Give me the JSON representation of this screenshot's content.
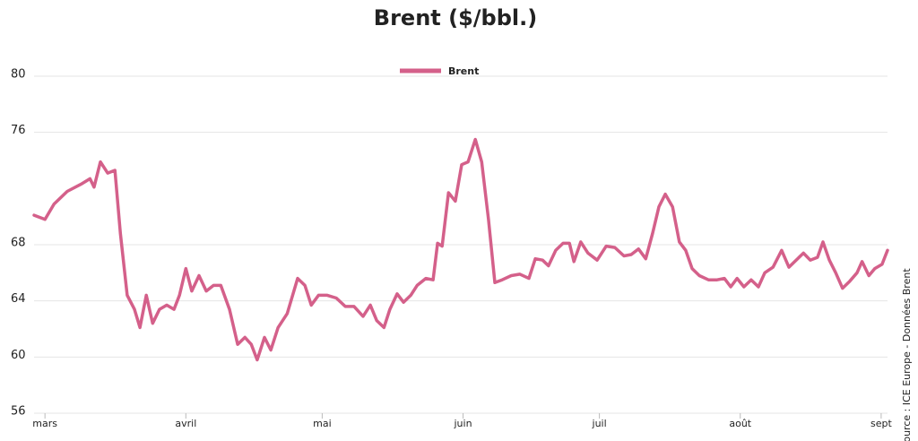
{
  "chart_data": {
    "type": "line",
    "title": "Brent ($/bbl.)",
    "source": "Source : ICE Europe - Données Brent",
    "legend": "top",
    "grid": true,
    "ylim": [
      56,
      80
    ],
    "yticks": [
      56,
      60,
      64,
      68,
      76,
      80
    ],
    "xlim": [
      -2.4,
      185.4
    ],
    "xticks": [
      {
        "value": 0,
        "label": "mars"
      },
      {
        "value": 31,
        "label": "avril"
      },
      {
        "value": 61,
        "label": "mai"
      },
      {
        "value": 92,
        "label": "juin"
      },
      {
        "value": 122,
        "label": "juil"
      },
      {
        "value": 153,
        "label": "août"
      },
      {
        "value": 184,
        "label": "sept"
      }
    ],
    "x": [
      -2.4,
      0,
      2.0,
      4.9,
      7.9,
      9.9,
      10.8,
      12.2,
      13.8,
      15.4,
      16.6,
      18.1,
      19.7,
      20.9,
      22.3,
      23.7,
      25.2,
      26.8,
      28.4,
      29.6,
      31.0,
      32.3,
      33.9,
      35.5,
      37.1,
      38.7,
      40.6,
      42.4,
      44.0,
      45.4,
      46.7,
      48.3,
      49.7,
      51.3,
      53.3,
      55.6,
      57.2,
      58.6,
      60.2,
      62.1,
      64.1,
      66.1,
      68.0,
      70.0,
      71.6,
      73.0,
      74.6,
      75.9,
      77.5,
      78.9,
      80.5,
      81.9,
      83.8,
      85.4,
      86.4,
      87.4,
      88.8,
      90.3,
      91.7,
      93.1,
      94.7,
      96.1,
      97.6,
      99.0,
      100.6,
      102.6,
      104.5,
      106.5,
      107.9,
      109.5,
      110.8,
      112.4,
      114.0,
      115.4,
      116.4,
      117.9,
      119.5,
      121.5,
      123.5,
      125.4,
      127.4,
      129.0,
      130.6,
      132.2,
      133.7,
      135.1,
      136.5,
      138.1,
      139.6,
      141.0,
      142.4,
      144.0,
      146.0,
      147.9,
      149.5,
      150.9,
      152.3,
      153.8,
      155.4,
      157.0,
      158.4,
      160.2,
      162.1,
      163.7,
      165.3,
      166.9,
      168.4,
      170.0,
      171.2,
      172.6,
      174.0,
      175.5,
      177.1,
      178.7,
      179.8,
      181.3,
      182.6,
      184.2,
      185.4
    ],
    "series": [
      {
        "name": "Brent",
        "color": "#d4608a",
        "values": [
          70.1,
          69.8,
          70.9,
          71.8,
          72.3,
          72.7,
          72.1,
          73.9,
          73.1,
          73.3,
          68.8,
          64.4,
          63.4,
          62.1,
          64.4,
          62.4,
          63.4,
          63.7,
          63.4,
          64.4,
          66.3,
          64.7,
          65.8,
          64.7,
          65.1,
          65.1,
          63.4,
          60.9,
          61.4,
          60.9,
          59.8,
          61.4,
          60.5,
          62.1,
          63.1,
          65.6,
          65.1,
          63.7,
          64.4,
          64.4,
          64.2,
          63.6,
          63.6,
          62.9,
          63.7,
          62.6,
          62.1,
          63.4,
          64.5,
          63.9,
          64.4,
          65.1,
          65.6,
          65.5,
          68.1,
          67.9,
          71.7,
          71.1,
          73.7,
          73.9,
          75.5,
          73.9,
          69.8,
          65.3,
          65.5,
          65.8,
          65.9,
          65.6,
          67.0,
          66.9,
          66.5,
          67.6,
          68.1,
          68.1,
          66.8,
          68.2,
          67.4,
          66.9,
          67.9,
          67.8,
          67.2,
          67.3,
          67.7,
          67.0,
          68.8,
          70.7,
          71.6,
          70.7,
          68.2,
          67.6,
          66.3,
          65.8,
          65.5,
          65.5,
          65.6,
          65.0,
          65.6,
          65.0,
          65.5,
          65.0,
          66.0,
          66.4,
          67.6,
          66.4,
          66.9,
          67.4,
          66.9,
          67.1,
          68.2,
          66.9,
          66.0,
          64.9,
          65.4,
          66.0,
          66.8,
          65.8,
          66.3,
          66.6,
          67.6
        ]
      }
    ]
  }
}
